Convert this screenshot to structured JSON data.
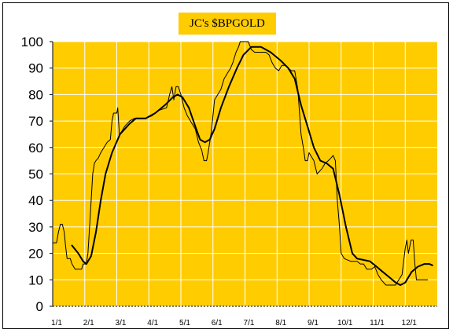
{
  "chart_data": {
    "type": "line",
    "title": "JC's $BPGOLD",
    "xlabel": "",
    "ylabel": "",
    "ylim": [
      0,
      100
    ],
    "yticks": [
      0,
      10,
      20,
      30,
      40,
      50,
      60,
      70,
      80,
      90,
      100
    ],
    "xticks": [
      "1/1",
      "2/1",
      "3/1",
      "4/1",
      "5/1",
      "6/1",
      "7/1",
      "8/1",
      "9/1",
      "10/1",
      "11/1",
      "12/1"
    ],
    "grid": true,
    "background": "#ffcc00",
    "line_color": "#000000",
    "series": [
      {
        "style": "thin",
        "points": [
          [
            0.0,
            24
          ],
          [
            0.12,
            24
          ],
          [
            0.18,
            28
          ],
          [
            0.24,
            31
          ],
          [
            0.3,
            31
          ],
          [
            0.36,
            28
          ],
          [
            0.4,
            23
          ],
          [
            0.45,
            18
          ],
          [
            0.55,
            18
          ],
          [
            0.6,
            16
          ],
          [
            0.7,
            14
          ],
          [
            0.9,
            14
          ],
          [
            0.95,
            16
          ],
          [
            1.05,
            16
          ],
          [
            1.1,
            20
          ],
          [
            1.15,
            30
          ],
          [
            1.2,
            40
          ],
          [
            1.25,
            50
          ],
          [
            1.3,
            54
          ],
          [
            1.35,
            55
          ],
          [
            1.42,
            56
          ],
          [
            1.5,
            58
          ],
          [
            1.6,
            60
          ],
          [
            1.7,
            62
          ],
          [
            1.8,
            63
          ],
          [
            1.85,
            70
          ],
          [
            1.9,
            73
          ],
          [
            1.95,
            73
          ],
          [
            2.0,
            73
          ],
          [
            2.03,
            75
          ],
          [
            2.08,
            65
          ],
          [
            2.15,
            66
          ],
          [
            2.25,
            68
          ],
          [
            2.4,
            70
          ],
          [
            2.55,
            71
          ],
          [
            2.7,
            71
          ],
          [
            2.9,
            71
          ],
          [
            3.1,
            72
          ],
          [
            3.3,
            74
          ],
          [
            3.55,
            75
          ],
          [
            3.65,
            80
          ],
          [
            3.72,
            83
          ],
          [
            3.78,
            78
          ],
          [
            3.85,
            83
          ],
          [
            3.92,
            83
          ],
          [
            4.0,
            80
          ],
          [
            4.1,
            75
          ],
          [
            4.2,
            72
          ],
          [
            4.3,
            70
          ],
          [
            4.45,
            67
          ],
          [
            4.55,
            62
          ],
          [
            4.65,
            59
          ],
          [
            4.72,
            55
          ],
          [
            4.8,
            55
          ],
          [
            4.85,
            58
          ],
          [
            4.9,
            62
          ],
          [
            4.95,
            66
          ],
          [
            5.0,
            72
          ],
          [
            5.05,
            78
          ],
          [
            5.15,
            80
          ],
          [
            5.25,
            82
          ],
          [
            5.35,
            86
          ],
          [
            5.45,
            88
          ],
          [
            5.55,
            90
          ],
          [
            5.62,
            92
          ],
          [
            5.72,
            96
          ],
          [
            5.8,
            98
          ],
          [
            5.85,
            100
          ],
          [
            5.95,
            100
          ],
          [
            6.1,
            100
          ],
          [
            6.2,
            97
          ],
          [
            6.3,
            96
          ],
          [
            6.45,
            96
          ],
          [
            6.55,
            96
          ],
          [
            6.65,
            96
          ],
          [
            6.75,
            95
          ],
          [
            6.85,
            92
          ],
          [
            6.95,
            90
          ],
          [
            7.05,
            89
          ],
          [
            7.15,
            91
          ],
          [
            7.25,
            91
          ],
          [
            7.35,
            90
          ],
          [
            7.45,
            89
          ],
          [
            7.55,
            89
          ],
          [
            7.65,
            82
          ],
          [
            7.75,
            65
          ],
          [
            7.82,
            60
          ],
          [
            7.88,
            55
          ],
          [
            7.95,
            55
          ],
          [
            8.0,
            58
          ],
          [
            8.05,
            57
          ],
          [
            8.15,
            55
          ],
          [
            8.25,
            50
          ],
          [
            8.4,
            52
          ],
          [
            8.5,
            54
          ],
          [
            8.6,
            55
          ],
          [
            8.68,
            56
          ],
          [
            8.75,
            57
          ],
          [
            8.82,
            55
          ],
          [
            8.88,
            40
          ],
          [
            8.95,
            30
          ],
          [
            9.0,
            20
          ],
          [
            9.1,
            18
          ],
          [
            9.3,
            17
          ],
          [
            9.5,
            17
          ],
          [
            9.6,
            16
          ],
          [
            9.7,
            16
          ],
          [
            9.8,
            14
          ],
          [
            9.95,
            14
          ],
          [
            10.05,
            15
          ],
          [
            10.15,
            12
          ],
          [
            10.25,
            10
          ],
          [
            10.4,
            8
          ],
          [
            10.55,
            8
          ],
          [
            10.7,
            8
          ],
          [
            10.8,
            10
          ],
          [
            10.9,
            12
          ],
          [
            11.0,
            22
          ],
          [
            11.05,
            25
          ],
          [
            11.1,
            20
          ],
          [
            11.18,
            25
          ],
          [
            11.25,
            25
          ],
          [
            11.3,
            16
          ],
          [
            11.35,
            10
          ],
          [
            11.5,
            10
          ],
          [
            11.7,
            10
          ]
        ]
      },
      {
        "style": "thick",
        "points": [
          [
            0.6,
            23
          ],
          [
            0.8,
            20
          ],
          [
            0.95,
            17
          ],
          [
            1.05,
            16
          ],
          [
            1.2,
            19
          ],
          [
            1.35,
            28
          ],
          [
            1.5,
            40
          ],
          [
            1.65,
            50
          ],
          [
            1.85,
            58
          ],
          [
            2.1,
            65
          ],
          [
            2.4,
            69
          ],
          [
            2.6,
            71
          ],
          [
            2.9,
            71
          ],
          [
            3.2,
            73
          ],
          [
            3.5,
            76
          ],
          [
            3.75,
            79
          ],
          [
            3.9,
            80
          ],
          [
            4.05,
            79
          ],
          [
            4.25,
            75
          ],
          [
            4.45,
            68
          ],
          [
            4.6,
            63
          ],
          [
            4.75,
            62
          ],
          [
            4.9,
            63
          ],
          [
            5.05,
            67
          ],
          [
            5.25,
            75
          ],
          [
            5.5,
            83
          ],
          [
            5.75,
            90
          ],
          [
            5.95,
            95
          ],
          [
            6.2,
            98
          ],
          [
            6.5,
            98
          ],
          [
            6.8,
            96
          ],
          [
            7.1,
            93
          ],
          [
            7.35,
            90
          ],
          [
            7.55,
            86
          ],
          [
            7.75,
            76
          ],
          [
            7.95,
            68
          ],
          [
            8.15,
            60
          ],
          [
            8.35,
            55
          ],
          [
            8.55,
            54
          ],
          [
            8.75,
            52
          ],
          [
            8.95,
            42
          ],
          [
            9.15,
            30
          ],
          [
            9.35,
            20
          ],
          [
            9.5,
            18
          ],
          [
            9.7,
            17.5
          ],
          [
            9.9,
            17
          ],
          [
            10.1,
            15
          ],
          [
            10.3,
            13
          ],
          [
            10.5,
            11
          ],
          [
            10.7,
            9
          ],
          [
            10.85,
            8
          ],
          [
            11.0,
            9
          ],
          [
            11.2,
            13
          ],
          [
            11.4,
            15
          ],
          [
            11.6,
            16
          ],
          [
            11.75,
            16
          ],
          [
            11.85,
            15.5
          ]
        ]
      }
    ]
  }
}
